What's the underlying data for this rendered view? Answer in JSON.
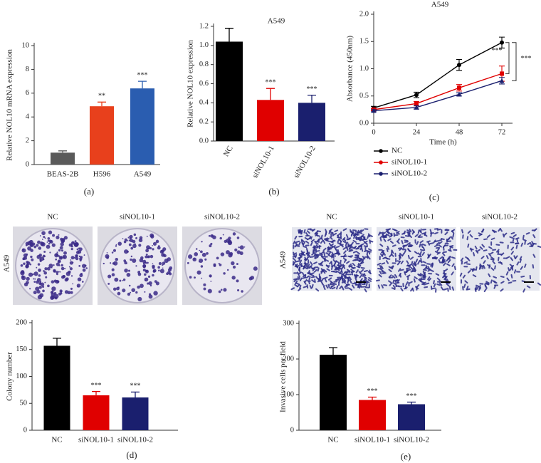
{
  "chart_data": [
    {
      "type": "bar",
      "panel": "(a)",
      "ylabel": "Relative NOL10 mRNA expression",
      "categories": [
        "BEAS-2B",
        "H596",
        "A549"
      ],
      "values": [
        1.0,
        4.9,
        6.4
      ],
      "errors": [
        0.15,
        0.35,
        0.6
      ],
      "colors": [
        "#5a5a5a",
        "#e8401c",
        "#2a5db0"
      ],
      "significance": [
        null,
        "**",
        "***"
      ],
      "ylim": [
        0,
        10
      ],
      "yticks": [
        0,
        2,
        4,
        6,
        8,
        10
      ]
    },
    {
      "type": "bar",
      "panel": "(b)",
      "title": "A549",
      "ylabel": "Relative NOL10 expression",
      "categories": [
        "NC",
        "siNOL10-1",
        "siNOL10-2"
      ],
      "values": [
        1.04,
        0.43,
        0.4
      ],
      "errors": [
        0.14,
        0.12,
        0.08
      ],
      "colors": [
        "#000000",
        "#e00000",
        "#1a1f6e"
      ],
      "significance": [
        null,
        "***",
        "***"
      ],
      "ylim": [
        0,
        1.2
      ],
      "yticks": [
        {
          "value": 0,
          "label": "0.0"
        },
        0.2,
        0.4,
        0.6,
        0.8,
        {
          "value": 1,
          "label": "1.0"
        },
        1.2
      ]
    },
    {
      "type": "line",
      "panel": "(c)",
      "title": "A549",
      "xlabel": "Time (h)",
      "ylabel": "Absorbance (450nm)",
      "x": [
        0,
        24,
        48,
        72
      ],
      "xlim": [
        0,
        78
      ],
      "xticks": [
        0,
        24,
        48,
        72
      ],
      "ylim": [
        0,
        2
      ],
      "yticks": [
        {
          "value": 0,
          "label": "0.0"
        },
        0.5,
        {
          "value": 1,
          "label": "1.0"
        },
        1.5,
        {
          "value": 2,
          "label": "2.0"
        }
      ],
      "series": [
        {
          "name": "NC",
          "color": "#000000",
          "values": [
            0.28,
            0.52,
            1.07,
            1.48
          ],
          "errors": [
            0.03,
            0.05,
            0.1,
            0.1
          ]
        },
        {
          "name": "siNOL10-1",
          "color": "#e00000",
          "values": [
            0.25,
            0.36,
            0.65,
            0.91
          ],
          "errors": [
            0.02,
            0.04,
            0.06,
            0.14
          ]
        },
        {
          "name": "siNOL10-2",
          "color": "#1a1f6e",
          "values": [
            0.23,
            0.29,
            0.53,
            0.78
          ],
          "errors": [
            0.02,
            0.03,
            0.03,
            0.06
          ]
        }
      ],
      "annotations": [
        "***",
        "***"
      ]
    },
    {
      "type": "bar",
      "panel": "(d)",
      "ylabel": "Colony number",
      "image_row_label": "A549",
      "image_labels": [
        "NC",
        "siNOL10-1",
        "siNOL10-2"
      ],
      "categories": [
        "NC",
        "siNOL10-1",
        "siNOL10-2"
      ],
      "values": [
        157,
        65,
        61
      ],
      "errors": [
        14,
        7,
        10
      ],
      "colors": [
        "#000000",
        "#e00000",
        "#1a1f6e"
      ],
      "significance": [
        null,
        "***",
        "***"
      ],
      "ylim": [
        0,
        200
      ],
      "yticks": [
        0,
        50,
        100,
        150,
        200
      ]
    },
    {
      "type": "bar",
      "panel": "(e)",
      "ylabel": "Invasive cells per field",
      "image_row_label": "A549",
      "image_labels": [
        "NC",
        "siNOL10-1",
        "siNOL10-2"
      ],
      "categories": [
        "NC",
        "siNOL10-1",
        "siNOL10-2"
      ],
      "values": [
        212,
        85,
        73
      ],
      "errors": [
        20,
        8,
        6
      ],
      "colors": [
        "#000000",
        "#e00000",
        "#1a1f6e"
      ],
      "significance": [
        null,
        "***",
        "***"
      ],
      "ylim": [
        0,
        300
      ],
      "yticks": [
        0,
        100,
        200,
        300
      ]
    }
  ]
}
